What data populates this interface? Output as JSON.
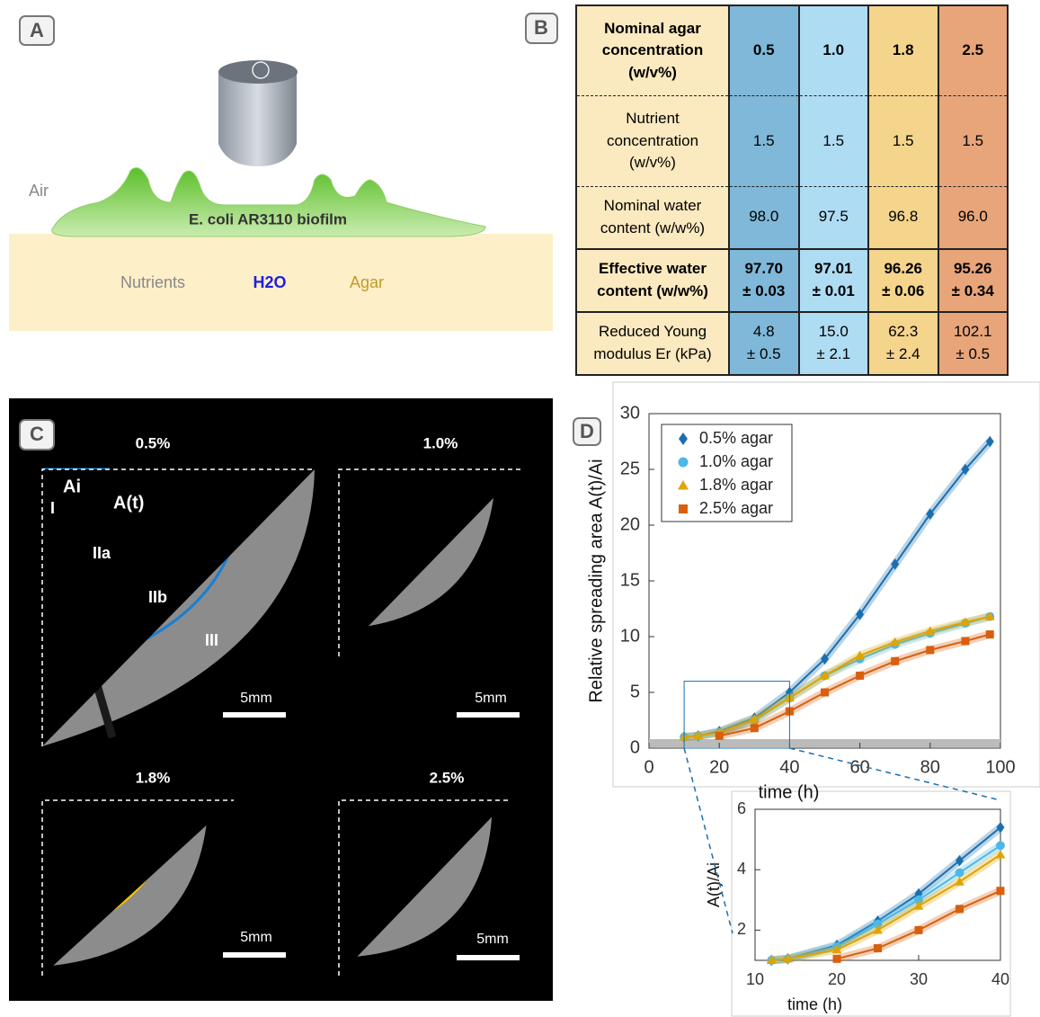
{
  "panel_a": {
    "label": "A",
    "air": "Air",
    "biofilm": "E. coli AR3110 biofilm",
    "nutrients": "Nutrients",
    "water": "H2O",
    "agar": "Agar"
  },
  "panel_b": {
    "label": "B",
    "header": [
      "Nominal agar\nconcentration\n(w/v%)",
      "0.5",
      "1.0",
      "1.8",
      "2.5"
    ],
    "rows": [
      [
        "Nutrient\nconcentration\n(w/v%)",
        "1.5",
        "1.5",
        "1.5",
        "1.5"
      ],
      [
        "Nominal water\ncontent (w/w%)",
        "98.0",
        "97.5",
        "96.8",
        "96.0"
      ],
      [
        "Effective water\ncontent (w/w%)",
        "97.70\n± 0.03",
        "97.01\n± 0.01",
        "96.26\n± 0.06",
        "95.26\n± 0.34"
      ],
      [
        "Reduced Young\nmodulus Er (kPa)",
        "4.8\n± 0.5",
        "15.0\n± 2.1",
        "62.3\n± 2.4",
        "102.1\n± 0.5"
      ]
    ]
  },
  "panel_c": {
    "label": "C",
    "titles": [
      "0.5%",
      "1.0%",
      "1.8%",
      "2.5%"
    ],
    "scale_bars": [
      "5mm",
      "5mm",
      "5mm",
      "5mm"
    ],
    "annotations": [
      "Ai",
      "A(t)",
      "I",
      "IIa",
      "IIb",
      "III"
    ]
  },
  "panel_d": {
    "label": "D"
  },
  "chart_data": [
    {
      "type": "line",
      "xlabel": "time (h)",
      "ylabel": "Relative spreading area A(t)/Ai",
      "x": [
        10,
        14,
        20,
        30,
        40,
        50,
        60,
        70,
        80,
        90,
        97
      ],
      "series": [
        {
          "name": "0.5% agar",
          "color": "#1a6fb0",
          "marker": "diamond",
          "values": [
            1,
            1.1,
            1.5,
            2.7,
            5,
            8,
            12,
            16.5,
            21,
            25,
            27.5
          ]
        },
        {
          "name": "1.0% agar",
          "color": "#4db8e8",
          "marker": "circle",
          "values": [
            1,
            1.1,
            1.4,
            2.5,
            4.5,
            6.5,
            8,
            9.3,
            10.3,
            11.2,
            11.8
          ]
        },
        {
          "name": "1.8% agar",
          "color": "#e0a400",
          "marker": "triangle",
          "values": [
            1,
            1.1,
            1.4,
            2.6,
            4.5,
            6.5,
            8.3,
            9.5,
            10.5,
            11.3,
            11.8
          ]
        },
        {
          "name": "2.5% agar",
          "color": "#d95f0e",
          "marker": "square",
          "values": [
            null,
            null,
            1.1,
            1.8,
            3.3,
            5,
            6.5,
            7.8,
            8.8,
            9.6,
            10.2
          ]
        }
      ],
      "xlim": [
        0,
        100
      ],
      "ylim": [
        0,
        30
      ],
      "xticks": [
        0,
        20,
        40,
        60,
        80,
        100
      ],
      "yticks": [
        0,
        5,
        10,
        15,
        20,
        25,
        30
      ],
      "legend": "upper left"
    },
    {
      "type": "line",
      "xlabel": "time (h)",
      "ylabel": "A(t)/Ai",
      "x": [
        12,
        14,
        20,
        25,
        30,
        35,
        40
      ],
      "series": [
        {
          "color": "#1a6fb0",
          "marker": "diamond",
          "values": [
            1,
            1.05,
            1.5,
            2.3,
            3.2,
            4.3,
            5.4
          ]
        },
        {
          "color": "#4db8e8",
          "marker": "circle",
          "values": [
            1,
            1.05,
            1.45,
            2.2,
            3.0,
            3.9,
            4.8
          ]
        },
        {
          "color": "#e0a400",
          "marker": "triangle",
          "values": [
            1,
            1.05,
            1.35,
            2.0,
            2.8,
            3.6,
            4.5
          ]
        },
        {
          "color": "#d95f0e",
          "marker": "square",
          "values": [
            null,
            null,
            1.05,
            1.4,
            2.0,
            2.7,
            3.3
          ]
        }
      ],
      "xlim": [
        10,
        40
      ],
      "ylim": [
        1,
        6
      ],
      "xticks": [
        10,
        20,
        30,
        40
      ],
      "yticks": [
        2,
        4,
        6
      ]
    }
  ]
}
